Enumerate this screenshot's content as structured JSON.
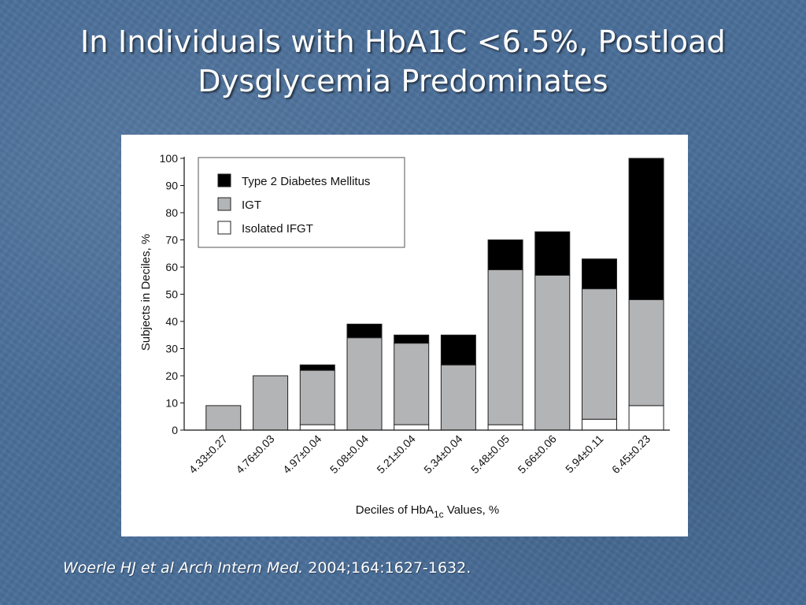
{
  "slide": {
    "title_line1": "In Individuals with HbA1C <6.5%, Postload",
    "title_line2": "Dysglycemia Predominates"
  },
  "citation": {
    "italic": "Woerle HJ  et al Arch Intern Med.",
    "plain": " 2004;164:1627-1632."
  },
  "chart_data": {
    "type": "bar",
    "stacked": true,
    "categories": [
      "4.33±0.27",
      "4.76±0.03",
      "4.97±0.04",
      "5.08±0.04",
      "5.21±0.04",
      "5.34±0.04",
      "5.48±0.05",
      "5.66±0.06",
      "5.94±0.11",
      "6.45±0.23"
    ],
    "series": [
      {
        "name": "Isolated IFGT",
        "color": "#ffffff",
        "values": [
          0,
          0,
          2,
          0,
          2,
          0,
          2,
          0,
          4,
          9
        ]
      },
      {
        "name": "IGT",
        "color": "#b3b4b6",
        "values": [
          9,
          20,
          20,
          34,
          30,
          24,
          57,
          57,
          48,
          39
        ]
      },
      {
        "name": "Type 2 Diabetes Mellitus",
        "color": "#000000",
        "values": [
          0,
          0,
          2,
          5,
          3,
          11,
          11,
          16,
          11,
          52
        ]
      }
    ],
    "ylabel": "Subjects in Deciles, %",
    "xlabel_main": "Deciles of HbA",
    "xlabel_sub": "1c",
    "xlabel_tail": " Values, %",
    "ylim": [
      0,
      100
    ],
    "yticks": [
      "0",
      "10",
      "20",
      "30",
      "40",
      "50",
      "60",
      "70",
      "80",
      "90",
      "100"
    ],
    "legend_position": "top-left",
    "legend_order": [
      "Type 2 Diabetes Mellitus",
      "IGT",
      "Isolated IFGT"
    ],
    "grid": false
  }
}
